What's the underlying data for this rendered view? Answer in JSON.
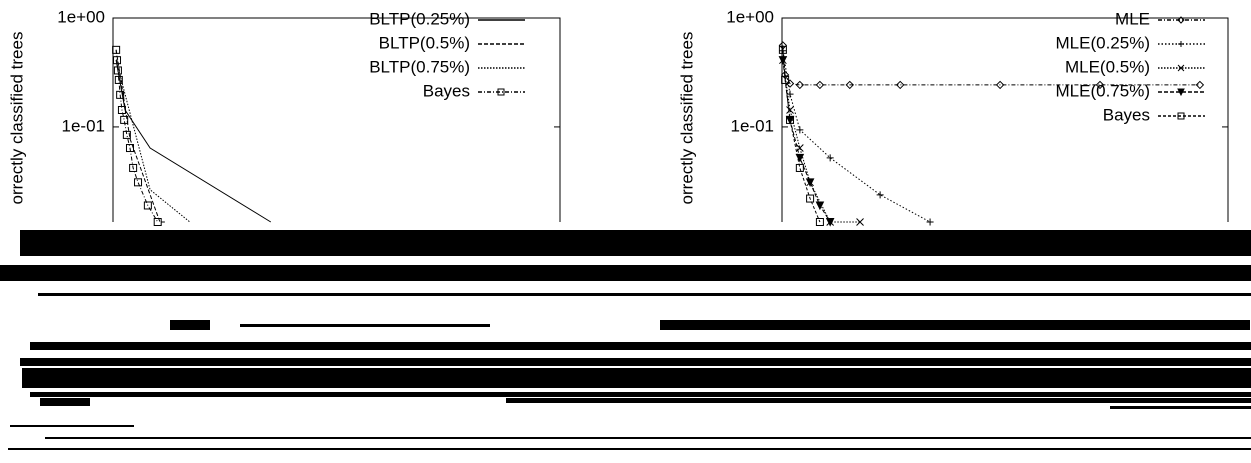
{
  "chart_data": [
    {
      "type": "line",
      "y_label": "orrectly classified trees",
      "log_y": true,
      "ylim": [
        0.0134,
        1
      ],
      "yticks": [
        {
          "value": 1,
          "label": "1e+00"
        },
        {
          "value": 0.1,
          "label": "1e-01"
        }
      ],
      "xlim": [
        0,
        100
      ],
      "series": [
        {
          "name": "BLTP(0.25%)",
          "color": "#000000",
          "dash": "none",
          "marker": "none",
          "x": [
            0.7,
            2.7,
            8.3,
            35.3
          ],
          "values": [
            0.41,
            0.143,
            0.064,
            0.0134
          ]
        },
        {
          "name": "BLTP(0.5%)",
          "color": "#000000",
          "dash": "4 2",
          "marker": "none",
          "x": [
            0.7,
            3.8,
            10.5,
            11.6
          ],
          "values": [
            0.51,
            0.078,
            0.0134,
            0.0134
          ]
        },
        {
          "name": "BLTP(0.75%)",
          "color": "#000000",
          "dash": "1.5 1.5",
          "marker": "none",
          "x": [
            0.7,
            8.3,
            17.2
          ],
          "values": [
            0.41,
            0.0265,
            0.0134
          ]
        },
        {
          "name": "Bayes",
          "color": "#000000",
          "dash": "4 2 1 2",
          "marker": "square",
          "x": [
            0.7,
            0.9,
            1.1,
            1.3,
            1.6,
            2,
            2.5,
            3.1,
            3.8,
            4.5,
            5.6,
            7.8,
            10
          ],
          "values": [
            0.51,
            0.41,
            0.33,
            0.27,
            0.197,
            0.143,
            0.116,
            0.0845,
            0.064,
            0.042,
            0.031,
            0.019,
            0.0134
          ]
        }
      ]
    },
    {
      "type": "line",
      "y_label": "orrectly classified trees",
      "log_y": true,
      "ylim": [
        0.0134,
        1
      ],
      "yticks": [
        {
          "value": 1,
          "label": "1e+00"
        },
        {
          "value": 0.1,
          "label": "1e-01"
        }
      ],
      "xlim": [
        0,
        100
      ],
      "series": [
        {
          "name": "MLE",
          "color": "#000000",
          "dash": "4 2 1 2",
          "marker": "diamond",
          "x": [
            0.2,
            0.7,
            1.8,
            4,
            8.5,
            15.2,
            26.5,
            48.9,
            71.3,
            93.7
          ],
          "values": [
            0.56,
            0.3,
            0.25,
            0.243,
            0.243,
            0.243,
            0.243,
            0.243,
            0.243,
            0.243
          ]
        },
        {
          "name": "MLE(0.25%)",
          "color": "#000000",
          "dash": "1.5 2",
          "marker": "plus",
          "x": [
            0.2,
            1.8,
            4,
            10.8,
            22,
            33.2
          ],
          "values": [
            0.5,
            0.2,
            0.094,
            0.052,
            0.0238,
            0.0134
          ]
        },
        {
          "name": "MLE(0.5%)",
          "color": "#000000",
          "dash": "1.5 1.5",
          "marker": "cross",
          "x": [
            0.2,
            1.8,
            4,
            6.3,
            10.8,
            17.5
          ],
          "values": [
            0.41,
            0.143,
            0.064,
            0.031,
            0.0134,
            0.0134
          ]
        },
        {
          "name": "MLE(0.75%)",
          "color": "#000000",
          "dash": "4 2",
          "marker": "triangle",
          "x": [
            0.2,
            1.8,
            4,
            6.3,
            8.5,
            10.8
          ],
          "values": [
            0.41,
            0.116,
            0.052,
            0.031,
            0.019,
            0.0134
          ]
        },
        {
          "name": "Bayes",
          "color": "#000000",
          "dash": "3 2",
          "marker": "square",
          "x": [
            0.2,
            0.7,
            1.8,
            4,
            6.3,
            8.5
          ],
          "values": [
            0.51,
            0.27,
            0.116,
            0.042,
            0.022,
            0.0134
          ]
        }
      ]
    }
  ]
}
